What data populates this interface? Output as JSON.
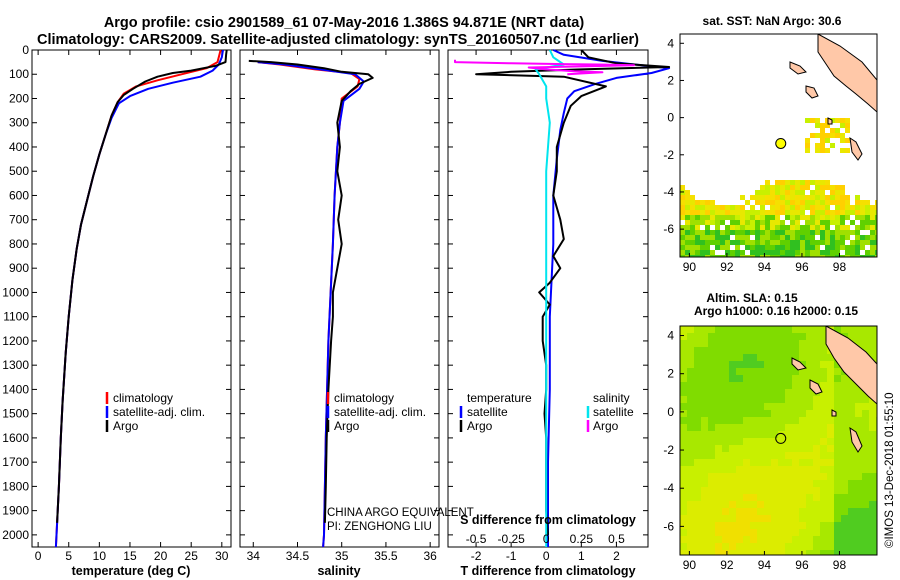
{
  "figure": {
    "title_line1": "Argo profile: csio 2901589_61 07-May-2016 1.386S 94.871E (NRT data)",
    "title_line2": "Climatology: CARS2009. Satellite-adjusted climatology: synTS_20160507.nc (1d earlier)",
    "credit": "©IMOS 13-Dec-2018 01:55:10",
    "institution": "CHINA ARGO EQUIVALENT",
    "pi": "PI: ZENGHONG LIU"
  },
  "colors": {
    "climatology": "#ff0000",
    "satellite": "#0000ff",
    "argo": "#000000",
    "salinity_satellite": "#00e5ee",
    "salinity_argo": "#ff00ff",
    "map_point": "#ffff00"
  },
  "legend": {
    "climatology": "climatology",
    "satellite_adj": "satellite-adj. clim.",
    "argo": "Argo",
    "temperature": "temperature",
    "salinity": "salinity",
    "satellite": "satellite"
  },
  "chart_data": [
    {
      "id": "temperature",
      "type": "line",
      "xlabel": "temperature (deg C)",
      "ylabel": "",
      "xlim": [
        -1,
        31.5
      ],
      "ylim": [
        2050,
        0
      ],
      "xticks": [
        0,
        5,
        10,
        15,
        20,
        25,
        30
      ],
      "yticks": [
        0,
        100,
        200,
        300,
        400,
        500,
        600,
        700,
        800,
        900,
        1000,
        1100,
        1200,
        1300,
        1400,
        1500,
        1600,
        1700,
        1800,
        1900,
        2000
      ],
      "series": [
        {
          "name": "climatology",
          "color_key": "climatology",
          "points": [
            [
              29.8,
              0
            ],
            [
              29.6,
              20
            ],
            [
              29.3,
              50
            ],
            [
              27.5,
              75
            ],
            [
              23.5,
              100
            ],
            [
              19.5,
              125
            ],
            [
              16.0,
              150
            ],
            [
              14.0,
              180
            ],
            [
              13.0,
              215
            ],
            [
              12.0,
              270
            ],
            [
              11.0,
              350
            ],
            [
              10.0,
              430
            ],
            [
              9.0,
              520
            ],
            [
              8.0,
              620
            ],
            [
              7.0,
              720
            ],
            [
              6.3,
              820
            ],
            [
              5.6,
              950
            ],
            [
              5.0,
              1100
            ],
            [
              4.5,
              1250
            ],
            [
              4.0,
              1450
            ],
            [
              3.7,
              1600
            ],
            [
              3.4,
              1800
            ],
            [
              3.0,
              2000
            ],
            [
              2.9,
              2050
            ]
          ]
        },
        {
          "name": "satellite-adj. clim.",
          "color_key": "satellite",
          "points": [
            [
              30.2,
              0
            ],
            [
              30.0,
              30
            ],
            [
              29.5,
              60
            ],
            [
              28.5,
              85
            ],
            [
              26.5,
              110
            ],
            [
              22.0,
              135
            ],
            [
              18.0,
              160
            ],
            [
              15.0,
              190
            ],
            [
              13.2,
              220
            ],
            [
              12.0,
              280
            ],
            [
              11.0,
              350
            ],
            [
              10.0,
              430
            ],
            [
              9.0,
              520
            ],
            [
              8.0,
              620
            ],
            [
              7.0,
              720
            ],
            [
              6.3,
              820
            ],
            [
              5.6,
              950
            ],
            [
              5.0,
              1100
            ],
            [
              4.5,
              1250
            ],
            [
              4.0,
              1450
            ],
            [
              3.7,
              1600
            ],
            [
              3.4,
              1800
            ],
            [
              3.0,
              2000
            ],
            [
              2.9,
              2050
            ]
          ]
        },
        {
          "name": "Argo",
          "color_key": "argo",
          "points": [
            [
              30.8,
              0
            ],
            [
              30.7,
              20
            ],
            [
              30.6,
              50
            ],
            [
              29.0,
              65
            ],
            [
              25.0,
              85
            ],
            [
              22.0,
              95
            ],
            [
              19.5,
              110
            ],
            [
              17.5,
              130
            ],
            [
              15.5,
              160
            ],
            [
              14.0,
              185
            ],
            [
              13.0,
              215
            ],
            [
              12.0,
              270
            ],
            [
              11.0,
              350
            ],
            [
              10.0,
              430
            ],
            [
              9.0,
              520
            ],
            [
              8.0,
              620
            ],
            [
              7.0,
              720
            ],
            [
              6.3,
              820
            ],
            [
              5.6,
              950
            ],
            [
              5.0,
              1100
            ],
            [
              4.5,
              1250
            ],
            [
              4.0,
              1450
            ],
            [
              3.7,
              1600
            ],
            [
              3.4,
              1800
            ],
            [
              3.1,
              1950
            ]
          ]
        }
      ]
    },
    {
      "id": "salinity",
      "type": "line",
      "xlabel": "salinity",
      "xlim": [
        33.85,
        36.1
      ],
      "ylim": [
        2050,
        0
      ],
      "xticks": [
        34,
        34.5,
        35,
        35.5,
        36
      ],
      "series": [
        {
          "name": "climatology",
          "color_key": "climatology",
          "points": [
            [
              34.05,
              50
            ],
            [
              34.3,
              60
            ],
            [
              34.7,
              80
            ],
            [
              35.1,
              95
            ],
            [
              35.2,
              120
            ],
            [
              35.18,
              150
            ],
            [
              35.0,
              200
            ],
            [
              34.98,
              300
            ],
            [
              34.95,
              400
            ],
            [
              34.92,
              600
            ],
            [
              34.9,
              800
            ],
            [
              34.85,
              1200
            ],
            [
              34.82,
              1600
            ],
            [
              34.8,
              2000
            ],
            [
              34.79,
              2050
            ]
          ]
        },
        {
          "name": "satellite-adj. clim.",
          "color_key": "satellite",
          "points": [
            [
              34.05,
              50
            ],
            [
              34.35,
              60
            ],
            [
              34.8,
              82
            ],
            [
              35.15,
              100
            ],
            [
              35.25,
              130
            ],
            [
              35.2,
              160
            ],
            [
              35.02,
              210
            ],
            [
              34.98,
              300
            ],
            [
              34.95,
              400
            ],
            [
              34.92,
              600
            ],
            [
              34.9,
              800
            ],
            [
              34.85,
              1200
            ],
            [
              34.82,
              1600
            ],
            [
              34.8,
              2000
            ],
            [
              34.79,
              2050
            ]
          ]
        },
        {
          "name": "Argo",
          "color_key": "argo",
          "points": [
            [
              33.95,
              45
            ],
            [
              34.2,
              50
            ],
            [
              34.5,
              60
            ],
            [
              34.8,
              75
            ],
            [
              35.0,
              90
            ],
            [
              35.3,
              100
            ],
            [
              35.35,
              115
            ],
            [
              35.2,
              140
            ],
            [
              35.1,
              170
            ],
            [
              35.0,
              210
            ],
            [
              34.95,
              300
            ],
            [
              34.98,
              400
            ],
            [
              34.95,
              500
            ],
            [
              35.0,
              600
            ],
            [
              34.96,
              700
            ],
            [
              35.0,
              800
            ],
            [
              34.95,
              900
            ],
            [
              34.9,
              1000
            ],
            [
              34.9,
              1100
            ],
            [
              34.88,
              1200
            ],
            [
              34.85,
              1400
            ],
            [
              34.83,
              1600
            ],
            [
              34.82,
              1800
            ],
            [
              34.81,
              1950
            ]
          ]
        }
      ]
    },
    {
      "id": "difference",
      "type": "line",
      "xlabel": "T difference from climatology",
      "xlabel2": "S difference from climatology",
      "xlim": [
        -2.8,
        2.9
      ],
      "ylim": [
        2050,
        0
      ],
      "xticks": [
        -2,
        -1,
        0,
        1,
        2
      ],
      "xticks2_positions": [
        -2,
        -1,
        0,
        1,
        2
      ],
      "xticks2_labels": [
        "-0.5",
        "-0.25",
        "0",
        "0.25",
        "0.5"
      ],
      "series": [
        {
          "name": "temperature satellite",
          "color_key": "satellite",
          "points": [
            [
              0.2,
              0
            ],
            [
              0.5,
              20
            ],
            [
              1.6,
              45
            ],
            [
              3.5,
              75
            ],
            [
              3.0,
              95
            ],
            [
              2.0,
              115
            ],
            [
              1.4,
              140
            ],
            [
              0.8,
              170
            ],
            [
              0.6,
              200
            ],
            [
              0.5,
              260
            ],
            [
              0.4,
              330
            ],
            [
              0.3,
              450
            ],
            [
              0.2,
              600
            ],
            [
              0.2,
              800
            ],
            [
              0.1,
              1100
            ],
            [
              0.1,
              1400
            ],
            [
              0.05,
              1700
            ],
            [
              0.05,
              2050
            ]
          ]
        },
        {
          "name": "temperature Argo",
          "color_key": "argo",
          "points": [
            [
              1.0,
              0
            ],
            [
              1.2,
              30
            ],
            [
              2.0,
              55
            ],
            [
              3.5,
              70
            ],
            [
              1.0,
              80
            ],
            [
              -1.0,
              90
            ],
            [
              -2.0,
              100
            ],
            [
              0.5,
              110
            ],
            [
              1.7,
              150
            ],
            [
              1.0,
              190
            ],
            [
              0.7,
              230
            ],
            [
              0.5,
              300
            ],
            [
              0.3,
              400
            ],
            [
              0.3,
              500
            ],
            [
              0.2,
              600
            ],
            [
              0.4,
              700
            ],
            [
              0.5,
              780
            ],
            [
              0.2,
              850
            ],
            [
              0.4,
              900
            ],
            [
              0.1,
              960
            ],
            [
              -0.2,
              1000
            ],
            [
              0.1,
              1050
            ],
            [
              -0.1,
              1100
            ],
            [
              -0.1,
              1150
            ],
            [
              -0.1,
              1200
            ],
            [
              0.0,
              1300
            ],
            [
              0.0,
              1400
            ],
            [
              -0.05,
              1500
            ],
            [
              0.0,
              1600
            ],
            [
              0.0,
              1700
            ],
            [
              0.0,
              1800
            ],
            [
              0.0,
              1900
            ],
            [
              0.05,
              2000
            ]
          ]
        },
        {
          "name": "salinity satellite",
          "color_key": "salinity_satellite",
          "points": [
            [
              0.1,
              0
            ],
            [
              0.2,
              30
            ],
            [
              0.5,
              60
            ],
            [
              -0.3,
              80
            ],
            [
              -0.2,
              100
            ],
            [
              0.0,
              150
            ],
            [
              0.0,
              200
            ],
            [
              0.1,
              300
            ],
            [
              0.0,
              500
            ],
            [
              0.0,
              800
            ],
            [
              0.0,
              1100
            ],
            [
              0.0,
              1400
            ],
            [
              0.0,
              1700
            ],
            [
              0.0,
              2000
            ],
            [
              0.0,
              2050
            ]
          ]
        },
        {
          "name": "salinity Argo",
          "color_key": "salinity_argo",
          "points": [
            [
              -2.6,
              40
            ],
            [
              -2.6,
              50
            ],
            [
              -1.0,
              55
            ],
            [
              0.5,
              58
            ],
            [
              1.5,
              60
            ],
            [
              2.5,
              63
            ],
            [
              -0.5,
              72
            ],
            [
              0.0,
              80
            ],
            [
              0.8,
              88
            ],
            [
              1.6,
              92
            ],
            [
              0.6,
              100
            ]
          ]
        }
      ]
    },
    {
      "id": "sst_map",
      "type": "heatmap",
      "title": "sat. SST: NaN Argo: 30.6",
      "xlim": [
        89.5,
        100
      ],
      "ylim": [
        -7.5,
        4.5
      ],
      "xticks": [
        90,
        92,
        94,
        96,
        98
      ],
      "yticks": [
        -6,
        -4,
        -2,
        0,
        2,
        4
      ],
      "argo_point": [
        94.87,
        -1.39
      ]
    },
    {
      "id": "sla_map",
      "type": "heatmap",
      "title": "Altim. SLA: 0.15",
      "subtitle": "Argo h1000: 0.16 h2000: 0.15",
      "xlim": [
        89.5,
        100
      ],
      "ylim": [
        -7.5,
        4.5
      ],
      "xticks": [
        90,
        92,
        94,
        96,
        98
      ],
      "yticks": [
        -6,
        -4,
        -2,
        0,
        2,
        4
      ],
      "argo_point": [
        94.87,
        -1.39
      ]
    }
  ]
}
